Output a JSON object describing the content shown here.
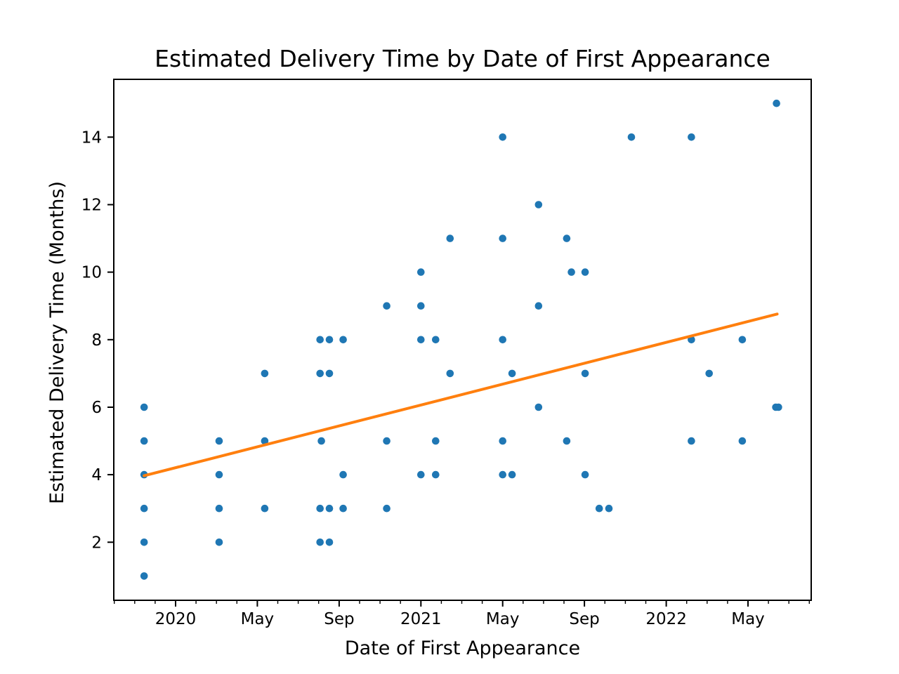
{
  "chart_data": {
    "type": "scatter",
    "title": "Estimated Delivery Time by Date of First Appearance",
    "xlabel": "Date of First Appearance",
    "ylabel": "Estimated Delivery Time (Months)",
    "grid": false,
    "legend": null,
    "colors": {
      "background": "#ffffff",
      "text": "#000000",
      "axis": "#000000",
      "marker": "#1f77b4",
      "trend": "#ff7f0e"
    },
    "x_axis": {
      "unit": "date",
      "range": [
        "2019-10-01",
        "2022-08-05"
      ],
      "major_ticks": [
        {
          "label": "2020",
          "date": "2020-01-01"
        },
        {
          "label": "May",
          "date": "2020-05-01"
        },
        {
          "label": "Sep",
          "date": "2020-09-01"
        },
        {
          "label": "2021",
          "date": "2021-01-01"
        },
        {
          "label": "May",
          "date": "2021-05-01"
        },
        {
          "label": "Sep",
          "date": "2021-09-01"
        },
        {
          "label": "2022",
          "date": "2022-01-01"
        },
        {
          "label": "May",
          "date": "2022-05-01"
        }
      ],
      "minor_ticks": {
        "every": "month",
        "start_month_offset": -3,
        "end_month_offset": 31
      }
    },
    "y_axis": {
      "range": [
        0.3,
        15.7
      ],
      "ticks": [
        2,
        4,
        6,
        8,
        10,
        12,
        14
      ]
    },
    "series": [
      {
        "name": "Estimated delivery time observations",
        "type": "scatter",
        "color": "#1f77b4",
        "marker_radius": 5.3,
        "points": [
          [
            "2019-11-15",
            1
          ],
          [
            "2019-11-15",
            2
          ],
          [
            "2019-11-15",
            3
          ],
          [
            "2019-11-15",
            4
          ],
          [
            "2019-11-15",
            5
          ],
          [
            "2019-11-15",
            6
          ],
          [
            "2020-03-05",
            2
          ],
          [
            "2020-03-05",
            3
          ],
          [
            "2020-03-05",
            4
          ],
          [
            "2020-03-05",
            5
          ],
          [
            "2020-05-12",
            3
          ],
          [
            "2020-05-12",
            5
          ],
          [
            "2020-05-12",
            7
          ],
          [
            "2020-08-03",
            2
          ],
          [
            "2020-08-03",
            3
          ],
          [
            "2020-08-03",
            7
          ],
          [
            "2020-08-03",
            8
          ],
          [
            "2020-08-05",
            5
          ],
          [
            "2020-08-17",
            2
          ],
          [
            "2020-08-17",
            3
          ],
          [
            "2020-08-17",
            7
          ],
          [
            "2020-08-17",
            8
          ],
          [
            "2020-09-07",
            3
          ],
          [
            "2020-09-07",
            4
          ],
          [
            "2020-09-07",
            8
          ],
          [
            "2020-11-11",
            3
          ],
          [
            "2020-11-11",
            5
          ],
          [
            "2020-11-11",
            9
          ],
          [
            "2021-01-01",
            4
          ],
          [
            "2021-01-01",
            8
          ],
          [
            "2021-01-01",
            9
          ],
          [
            "2021-01-01",
            10
          ],
          [
            "2021-01-23",
            4
          ],
          [
            "2021-01-23",
            5
          ],
          [
            "2021-01-23",
            8
          ],
          [
            "2021-02-14",
            7
          ],
          [
            "2021-02-14",
            11
          ],
          [
            "2021-05-01",
            4
          ],
          [
            "2021-05-01",
            5
          ],
          [
            "2021-05-01",
            8
          ],
          [
            "2021-05-01",
            11
          ],
          [
            "2021-05-01",
            14
          ],
          [
            "2021-05-15",
            4
          ],
          [
            "2021-05-15",
            7
          ],
          [
            "2021-06-24",
            6
          ],
          [
            "2021-06-24",
            9
          ],
          [
            "2021-06-24",
            12
          ],
          [
            "2021-08-05",
            5
          ],
          [
            "2021-08-05",
            11
          ],
          [
            "2021-08-12",
            10
          ],
          [
            "2021-09-02",
            4
          ],
          [
            "2021-09-02",
            7
          ],
          [
            "2021-09-02",
            10
          ],
          [
            "2021-09-23",
            3
          ],
          [
            "2021-10-07",
            3
          ],
          [
            "2021-11-10",
            14
          ],
          [
            "2022-02-08",
            5
          ],
          [
            "2022-02-08",
            8
          ],
          [
            "2022-02-08",
            14
          ],
          [
            "2022-03-04",
            7
          ],
          [
            "2022-04-23",
            5
          ],
          [
            "2022-04-23",
            8
          ],
          [
            "2022-06-12",
            6
          ],
          [
            "2022-06-16",
            6
          ],
          [
            "2022-06-13",
            15
          ]
        ]
      },
      {
        "name": "Trend line",
        "type": "line",
        "color": "#ff7f0e",
        "line_width": 4,
        "points": [
          [
            "2019-11-15",
            3.97
          ],
          [
            "2022-06-14",
            8.76
          ]
        ]
      }
    ]
  }
}
